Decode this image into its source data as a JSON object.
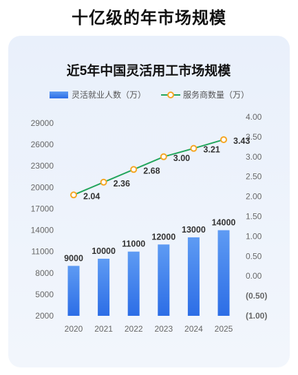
{
  "page": {
    "title": "十亿级的年市场规模"
  },
  "chart_data": {
    "type": "bar",
    "title": "近5年中国灵活用工市场规模",
    "categories": [
      "2020",
      "2021",
      "2022",
      "2023",
      "2024",
      "2025"
    ],
    "series": [
      {
        "name": "灵活就业人数（万）",
        "type": "bar",
        "axis": "left",
        "values": [
          9000,
          10000,
          11000,
          12000,
          13000,
          14000
        ],
        "labels": [
          "9000",
          "10000",
          "11000",
          "12000",
          "13000",
          "14000"
        ]
      },
      {
        "name": "服务商数量（万）",
        "type": "line",
        "axis": "right",
        "values": [
          2.04,
          2.36,
          2.68,
          3.0,
          3.21,
          3.43
        ],
        "labels": [
          "2.04",
          "2.36",
          "2.68",
          "3.00",
          "3.21",
          "3.43"
        ]
      }
    ],
    "left_axis": {
      "ylim": [
        2000,
        29000
      ],
      "ticks": [
        "2000",
        "5000",
        "8000",
        "11000",
        "14000",
        "17000",
        "20000",
        "23000",
        "26000",
        "29000"
      ]
    },
    "right_axis": {
      "ylim": [
        -1.0,
        4.0
      ],
      "ticks": [
        "(1.00)",
        "(0.50)",
        "0.00",
        "0.50",
        "1.00",
        "1.50",
        "2.00",
        "2.50",
        "3.00",
        "3.50",
        "4.00"
      ]
    },
    "grid": false,
    "legend_position": "top",
    "colors": {
      "bar": "#2f72e8",
      "bar_top": "#5a96f2",
      "line": "#22a55b",
      "marker": "#f5a623",
      "negative_tick": "#cc0000"
    }
  }
}
